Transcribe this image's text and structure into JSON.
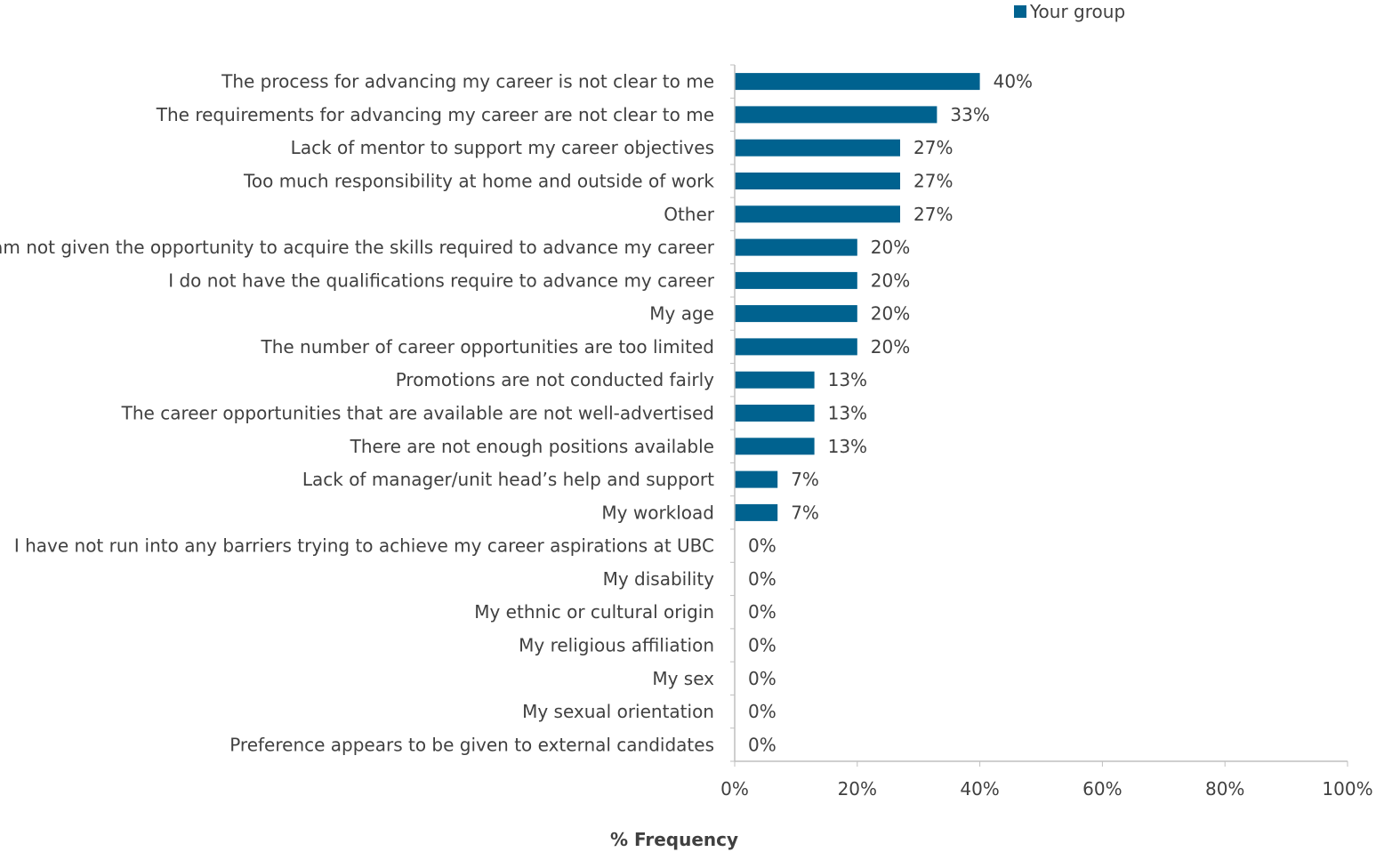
{
  "chart_data": {
    "type": "bar",
    "orientation": "horizontal",
    "title": "",
    "xlabel": "% Frequency",
    "ylabel": "",
    "xlim": [
      0,
      100
    ],
    "x_ticks": [
      "0%",
      "20%",
      "40%",
      "60%",
      "80%",
      "100%"
    ],
    "grid": false,
    "legend": {
      "placement": "top-right",
      "entries": [
        "Your group"
      ]
    },
    "categories": [
      "The process for advancing my career is not clear to me",
      "The requirements for advancing my career are not clear to me",
      "Lack of mentor to support my career objectives",
      "Too much responsibility at home and outside of work",
      "Other",
      "I am not given the opportunity to acquire the skills required to advance my career",
      "I do not have the qualifications require to advance my career",
      "My age",
      "The number of career opportunities are too limited",
      "Promotions are not conducted fairly",
      "The career opportunities that are available are not well-advertised",
      "There are not enough positions available",
      "Lack of manager/unit head’s help and support",
      "My workload",
      "I have not run into any barriers trying to achieve my career aspirations at UBC",
      "My disability",
      "My ethnic or cultural origin",
      "My religious affiliation",
      "My sex",
      "My sexual orientation",
      "Preference appears to be given to external candidates"
    ],
    "series": [
      {
        "name": "Your group",
        "color": "#00628f",
        "values": [
          40,
          33,
          27,
          27,
          27,
          20,
          20,
          20,
          20,
          13,
          13,
          13,
          7,
          7,
          0,
          0,
          0,
          0,
          0,
          0,
          0
        ],
        "labels": [
          "40%",
          "33%",
          "27%",
          "27%",
          "27%",
          "20%",
          "20%",
          "20%",
          "20%",
          "13%",
          "13%",
          "13%",
          "7%",
          "7%",
          "0%",
          "0%",
          "0%",
          "0%",
          "0%",
          "0%",
          "0%"
        ]
      }
    ]
  }
}
